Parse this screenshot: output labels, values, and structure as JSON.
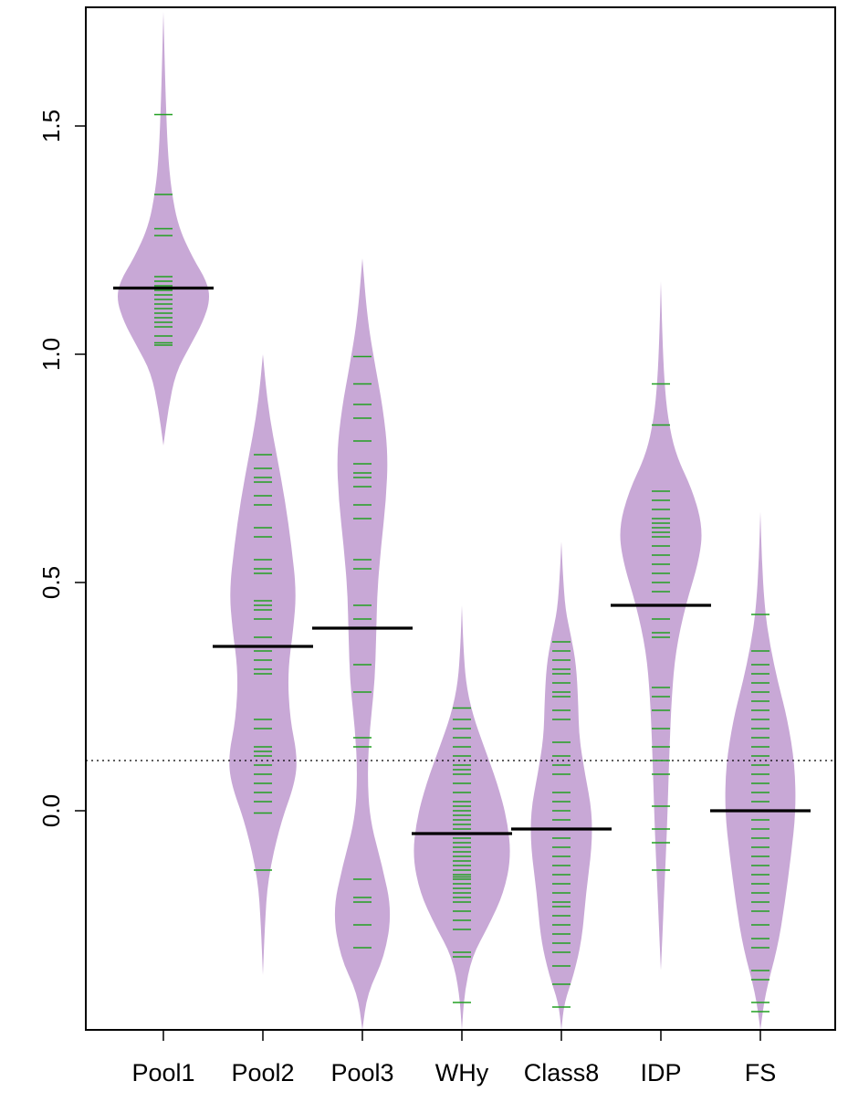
{
  "chart_data": {
    "type": "beanplot",
    "title": "",
    "xlabel": "",
    "ylabel": "",
    "categories": [
      "Pool1",
      "Pool2",
      "Pool3",
      "WHy",
      "Class8",
      "IDP",
      "FS"
    ],
    "ylim": [
      -0.48,
      1.76
    ],
    "y_ticks": [
      {
        "value": 0.0,
        "label": "0.0"
      },
      {
        "value": 0.5,
        "label": "0.5"
      },
      {
        "value": 1.0,
        "label": "1.0"
      },
      {
        "value": 1.5,
        "label": "1.5"
      }
    ],
    "overall_reference_line": 0.11,
    "grid": false,
    "legend": "none",
    "colors": {
      "bean_fill": "#c8a8d6",
      "observation_line": "#22a022",
      "group_mean_line": "#000000",
      "reference_line": "#000000",
      "axis": "#000000"
    },
    "beans": [
      {
        "name": "Pool1",
        "mean": 1.145,
        "range": [
          0.8,
          1.75
        ],
        "density_profile": [
          [
            0.8,
            0.0
          ],
          [
            0.88,
            0.1
          ],
          [
            0.96,
            0.25
          ],
          [
            1.02,
            0.55
          ],
          [
            1.07,
            0.8
          ],
          [
            1.12,
            0.95
          ],
          [
            1.16,
            0.88
          ],
          [
            1.21,
            0.6
          ],
          [
            1.28,
            0.3
          ],
          [
            1.36,
            0.16
          ],
          [
            1.44,
            0.09
          ],
          [
            1.55,
            0.05
          ],
          [
            1.65,
            0.025
          ],
          [
            1.75,
            0.0
          ]
        ],
        "observations": [
          1.02,
          1.025,
          1.04,
          1.06,
          1.07,
          1.08,
          1.09,
          1.1,
          1.11,
          1.12,
          1.13,
          1.14,
          1.15,
          1.16,
          1.17,
          1.26,
          1.275,
          1.35,
          1.525
        ]
      },
      {
        "name": "Pool2",
        "mean": 0.36,
        "range": [
          -0.36,
          1.0
        ],
        "density_profile": [
          [
            -0.36,
            0.0
          ],
          [
            -0.25,
            0.04
          ],
          [
            -0.15,
            0.1
          ],
          [
            -0.03,
            0.35
          ],
          [
            0.06,
            0.65
          ],
          [
            0.12,
            0.7
          ],
          [
            0.2,
            0.55
          ],
          [
            0.3,
            0.5
          ],
          [
            0.4,
            0.62
          ],
          [
            0.48,
            0.68
          ],
          [
            0.58,
            0.58
          ],
          [
            0.68,
            0.45
          ],
          [
            0.78,
            0.28
          ],
          [
            0.86,
            0.14
          ],
          [
            0.94,
            0.05
          ],
          [
            1.0,
            0.0
          ]
        ],
        "observations": [
          -0.13,
          -0.005,
          0.02,
          0.04,
          0.06,
          0.08,
          0.1,
          0.12,
          0.13,
          0.14,
          0.18,
          0.2,
          0.3,
          0.31,
          0.33,
          0.35,
          0.38,
          0.42,
          0.44,
          0.45,
          0.46,
          0.52,
          0.53,
          0.55,
          0.6,
          0.62,
          0.67,
          0.69,
          0.72,
          0.73,
          0.75,
          0.78
        ]
      },
      {
        "name": "Pool3",
        "mean": 0.4,
        "range": [
          -0.48,
          1.21
        ],
        "density_profile": [
          [
            -0.48,
            0.0
          ],
          [
            -0.4,
            0.1
          ],
          [
            -0.32,
            0.45
          ],
          [
            -0.22,
            0.6
          ],
          [
            -0.12,
            0.4
          ],
          [
            -0.02,
            0.15
          ],
          [
            0.08,
            0.1
          ],
          [
            0.18,
            0.15
          ],
          [
            0.28,
            0.25
          ],
          [
            0.38,
            0.28
          ],
          [
            0.48,
            0.3
          ],
          [
            0.58,
            0.38
          ],
          [
            0.68,
            0.48
          ],
          [
            0.78,
            0.52
          ],
          [
            0.88,
            0.42
          ],
          [
            0.98,
            0.25
          ],
          [
            1.08,
            0.1
          ],
          [
            1.21,
            0.0
          ]
        ],
        "observations": [
          -0.3,
          -0.25,
          -0.2,
          -0.19,
          -0.15,
          0.14,
          0.16,
          0.26,
          0.32,
          0.42,
          0.45,
          0.53,
          0.55,
          0.64,
          0.67,
          0.71,
          0.73,
          0.74,
          0.76,
          0.81,
          0.86,
          0.89,
          0.935,
          0.995
        ]
      },
      {
        "name": "WHy",
        "mean": -0.05,
        "range": [
          -0.48,
          0.45
        ],
        "density_profile": [
          [
            -0.48,
            0.0
          ],
          [
            -0.4,
            0.05
          ],
          [
            -0.32,
            0.2
          ],
          [
            -0.25,
            0.55
          ],
          [
            -0.18,
            0.85
          ],
          [
            -0.1,
            1.0
          ],
          [
            -0.02,
            0.92
          ],
          [
            0.06,
            0.72
          ],
          [
            0.14,
            0.45
          ],
          [
            0.21,
            0.22
          ],
          [
            0.28,
            0.08
          ],
          [
            0.36,
            0.03
          ],
          [
            0.45,
            0.0
          ]
        ],
        "observations": [
          -0.42,
          -0.32,
          -0.31,
          -0.26,
          -0.24,
          -0.22,
          -0.2,
          -0.19,
          -0.18,
          -0.17,
          -0.16,
          -0.15,
          -0.145,
          -0.14,
          -0.13,
          -0.12,
          -0.11,
          -0.1,
          -0.09,
          -0.08,
          -0.07,
          -0.06,
          -0.05,
          -0.04,
          -0.03,
          -0.02,
          -0.01,
          0.0,
          0.01,
          0.02,
          0.04,
          0.06,
          0.08,
          0.09,
          0.1,
          0.12,
          0.14,
          0.16,
          0.18,
          0.2,
          0.225
        ]
      },
      {
        "name": "Class8",
        "mean": -0.04,
        "range": [
          -0.48,
          0.59
        ],
        "density_profile": [
          [
            -0.48,
            0.0
          ],
          [
            -0.42,
            0.06
          ],
          [
            -0.36,
            0.25
          ],
          [
            -0.28,
            0.42
          ],
          [
            -0.18,
            0.5
          ],
          [
            -0.08,
            0.62
          ],
          [
            0.0,
            0.62
          ],
          [
            0.08,
            0.48
          ],
          [
            0.16,
            0.36
          ],
          [
            0.24,
            0.34
          ],
          [
            0.32,
            0.3
          ],
          [
            0.38,
            0.2
          ],
          [
            0.44,
            0.08
          ],
          [
            0.52,
            0.03
          ],
          [
            0.59,
            0.0
          ]
        ],
        "observations": [
          -0.43,
          -0.38,
          -0.34,
          -0.31,
          -0.29,
          -0.27,
          -0.25,
          -0.23,
          -0.21,
          -0.2,
          -0.18,
          -0.16,
          -0.14,
          -0.12,
          -0.1,
          -0.08,
          -0.06,
          -0.04,
          -0.02,
          0.0,
          0.02,
          0.04,
          0.08,
          0.1,
          0.12,
          0.15,
          0.2,
          0.22,
          0.25,
          0.26,
          0.28,
          0.3,
          0.31,
          0.33,
          0.35,
          0.37
        ]
      },
      {
        "name": "IDP",
        "mean": 0.45,
        "range": [
          -0.35,
          1.16
        ],
        "density_profile": [
          [
            -0.35,
            0.0
          ],
          [
            -0.25,
            0.04
          ],
          [
            -0.15,
            0.08
          ],
          [
            -0.05,
            0.12
          ],
          [
            0.05,
            0.15
          ],
          [
            0.15,
            0.18
          ],
          [
            0.25,
            0.22
          ],
          [
            0.35,
            0.3
          ],
          [
            0.45,
            0.5
          ],
          [
            0.55,
            0.78
          ],
          [
            0.62,
            0.85
          ],
          [
            0.7,
            0.65
          ],
          [
            0.78,
            0.3
          ],
          [
            0.86,
            0.14
          ],
          [
            0.94,
            0.07
          ],
          [
            1.04,
            0.03
          ],
          [
            1.16,
            0.0
          ]
        ],
        "observations": [
          -0.13,
          -0.07,
          -0.04,
          0.01,
          0.08,
          0.11,
          0.14,
          0.18,
          0.22,
          0.25,
          0.27,
          0.38,
          0.39,
          0.42,
          0.45,
          0.48,
          0.5,
          0.52,
          0.54,
          0.56,
          0.58,
          0.6,
          0.61,
          0.62,
          0.63,
          0.64,
          0.66,
          0.68,
          0.7,
          0.845,
          0.935
        ]
      },
      {
        "name": "FS",
        "mean": 0.0,
        "range": [
          -0.48,
          0.655
        ],
        "density_profile": [
          [
            -0.48,
            0.0
          ],
          [
            -0.4,
            0.1
          ],
          [
            -0.3,
            0.35
          ],
          [
            -0.2,
            0.5
          ],
          [
            -0.1,
            0.62
          ],
          [
            0.0,
            0.72
          ],
          [
            0.1,
            0.7
          ],
          [
            0.2,
            0.55
          ],
          [
            0.28,
            0.36
          ],
          [
            0.36,
            0.2
          ],
          [
            0.44,
            0.09
          ],
          [
            0.55,
            0.03
          ],
          [
            0.655,
            0.0
          ]
        ],
        "observations": [
          -0.44,
          -0.42,
          -0.37,
          -0.35,
          -0.3,
          -0.28,
          -0.25,
          -0.22,
          -0.2,
          -0.18,
          -0.16,
          -0.14,
          -0.12,
          -0.1,
          -0.08,
          -0.06,
          -0.04,
          -0.02,
          0.0,
          0.02,
          0.04,
          0.06,
          0.08,
          0.1,
          0.12,
          0.14,
          0.16,
          0.18,
          0.2,
          0.22,
          0.24,
          0.26,
          0.28,
          0.3,
          0.32,
          0.35,
          0.43
        ]
      }
    ]
  }
}
